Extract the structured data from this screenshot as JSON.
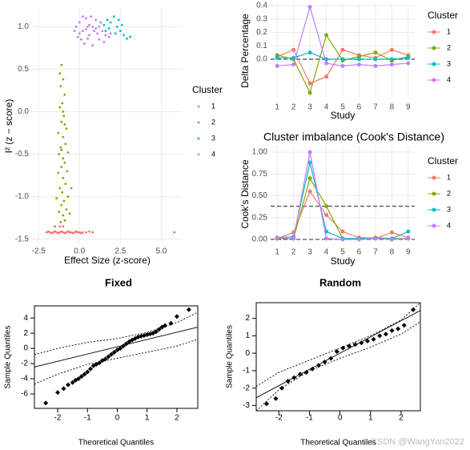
{
  "chart_data": [
    {
      "type": "scatter",
      "x_label": "Effect Size (z-score)",
      "y_label": "I² (z − score)",
      "legend_title": "Cluster",
      "xlim": [
        -2.9,
        6.3
      ],
      "ylim": [
        -1.56,
        1.22
      ],
      "xticks": [
        -2.5,
        {
          "value": 0,
          "label": "0.0"
        },
        2.5,
        {
          "value": 5,
          "label": "5.0"
        }
      ],
      "yticks": [
        {
          "value": 1,
          "label": "1.0"
        },
        0.5,
        {
          "value": 0,
          "label": "0.0"
        },
        -0.5,
        {
          "value": -1,
          "label": "-1.0"
        },
        -1.5
      ],
      "grid": true,
      "series": [
        {
          "name": "1",
          "color": "#F8766D",
          "x": [
            -2.0,
            -1.9,
            -1.8,
            -1.7,
            -1.6,
            -1.5,
            -1.4,
            -1.3,
            -1.2,
            -1.1,
            -1.0,
            -0.9,
            -0.8,
            -0.7,
            -0.6,
            -0.5,
            -0.4,
            -0.3,
            -0.2,
            -0.1,
            0.0,
            0.1,
            0.2,
            0.4,
            0.6,
            0.8,
            5.8,
            -1.2,
            -1.0
          ],
          "values": [
            -1.42,
            -1.41,
            -1.42,
            -1.43,
            -1.42,
            -1.41,
            -1.42,
            -1.43,
            -1.42,
            -1.41,
            -1.42,
            -1.43,
            -1.42,
            -1.41,
            -1.42,
            -1.42,
            -1.43,
            -1.42,
            -1.41,
            -1.42,
            -1.42,
            -1.43,
            -1.42,
            -1.42,
            -1.41,
            -1.42,
            -1.42,
            -1.35,
            -1.35
          ]
        },
        {
          "name": "2",
          "color": "#7CAE00",
          "x": [
            -1.1,
            -1.2,
            -1.0,
            -1.15,
            -0.9,
            -1.05,
            -1.2,
            -0.95,
            -1.1,
            -0.8,
            -1.3,
            -1.0,
            -0.85,
            -1.15,
            -0.7,
            -1.25,
            -1.0,
            -0.9,
            -1.1,
            -0.75,
            -1.3,
            -1.0,
            -0.85,
            -1.2,
            -1.05,
            -0.7,
            -1.4,
            -0.95,
            -1.1,
            -0.8,
            -1.25,
            -1.0,
            -0.9,
            -1.15,
            -1.5,
            -0.6,
            -0.5,
            -1.0,
            -0.9,
            -1.1
          ],
          "values": [
            0.55,
            0.45,
            0.38,
            0.3,
            0.2,
            0.1,
            0.05,
            -0.05,
            -0.12,
            -0.2,
            -0.25,
            -0.3,
            -0.38,
            -0.42,
            -0.48,
            -0.5,
            -0.55,
            -0.6,
            -0.65,
            -0.7,
            -0.72,
            -0.78,
            -0.85,
            -0.9,
            -0.95,
            -1.0,
            -1.02,
            -1.05,
            -1.1,
            -1.15,
            -1.18,
            -1.22,
            -1.28,
            -1.3,
            -1.35,
            -1.2,
            -0.9,
            0.0,
            -0.15,
            -0.45
          ]
        },
        {
          "name": "3",
          "color": "#00BFC4",
          "x": [
            1.5,
            1.7,
            1.9,
            2.1,
            2.3,
            2.5,
            2.7,
            2.9,
            3.1,
            2.2,
            1.8,
            2.4,
            2.6,
            1.6
          ],
          "values": [
            1.02,
            1.08,
            1.05,
            1.12,
            1.0,
            0.95,
            0.9,
            0.86,
            0.88,
            0.92,
            0.98,
            1.08,
            1.02,
            0.95
          ]
        },
        {
          "name": "4",
          "color": "#C77CFF",
          "x": [
            -0.2,
            0.0,
            0.2,
            0.4,
            0.6,
            0.8,
            1.0,
            1.2,
            1.4,
            1.6,
            1.8,
            0.1,
            0.3,
            0.5,
            0.7,
            0.9,
            1.1,
            1.3,
            0.0,
            -0.1,
            0.6,
            1.5,
            0.2,
            0.8,
            1.9,
            1.0,
            0.4,
            1.2,
            -0.3,
            0.5
          ],
          "values": [
            1.0,
            1.05,
            0.95,
            1.1,
            0.9,
            1.0,
            1.08,
            0.85,
            0.95,
            0.9,
            0.88,
            0.85,
            0.8,
            1.0,
            1.12,
            0.95,
            0.92,
            1.05,
            0.92,
            0.88,
            1.02,
            0.82,
            1.12,
            0.78,
            0.92,
            0.98,
            0.97,
            1.0,
            0.95,
            0.86
          ]
        }
      ]
    },
    {
      "type": "line",
      "x_label": "Study",
      "y_label": "Delta Percentage",
      "legend_title": "Cluster",
      "x": [
        1,
        2,
        3,
        4,
        5,
        6,
        7,
        8,
        9
      ],
      "xticks": [
        1,
        2,
        3,
        4,
        5,
        6,
        7,
        8,
        9
      ],
      "xlim": [
        0.6,
        9.4
      ],
      "ylim": [
        -0.287,
        0.412
      ],
      "yticks": [
        {
          "value": 0,
          "label": "0.0"
        },
        0.1,
        0.2,
        0.3,
        0.4
      ],
      "grid": true,
      "hlines": [
        0
      ],
      "series": [
        {
          "name": "1",
          "color": "#F8766D",
          "values": [
            0.02,
            0.07,
            -0.18,
            -0.13,
            0.07,
            0.03,
            0.01,
            0.07,
            0.03
          ]
        },
        {
          "name": "2",
          "color": "#7CAE00",
          "values": [
            0.03,
            0.0,
            -0.25,
            0.18,
            -0.01,
            0.02,
            0.05,
            -0.01,
            0.02
          ]
        },
        {
          "name": "3",
          "color": "#00BFC4",
          "values": [
            0.01,
            0.01,
            0.05,
            0.0,
            0.0,
            0.0,
            0.0,
            0.0,
            0.01
          ]
        },
        {
          "name": "4",
          "color": "#C77CFF",
          "values": [
            -0.05,
            -0.04,
            0.39,
            -0.03,
            -0.05,
            -0.04,
            -0.05,
            -0.04,
            -0.03
          ]
        }
      ]
    },
    {
      "type": "line",
      "title": "Cluster imbalance (Cook's Distance)",
      "x_label": "Study",
      "y_label": "Cook's Distance",
      "legend_title": "Cluster",
      "x": [
        1,
        2,
        3,
        4,
        5,
        6,
        7,
        8,
        9
      ],
      "xticks": [
        1,
        2,
        3,
        4,
        5,
        6,
        7,
        8,
        9
      ],
      "xlim": [
        0.6,
        9.4
      ],
      "ylim": [
        -0.037,
        1.073
      ],
      "yticks": [
        {
          "value": 0,
          "label": "0.00"
        },
        0.25,
        {
          "value": 0.5,
          "label": "0.50"
        },
        0.75,
        {
          "value": 1,
          "label": "1.00"
        }
      ],
      "grid": true,
      "hlines": [
        0.38,
        0
      ],
      "series": [
        {
          "name": "1",
          "color": "#F8766D",
          "values": [
            0.01,
            0.08,
            0.55,
            0.28,
            0.09,
            0.02,
            0.01,
            0.08,
            0.02
          ]
        },
        {
          "name": "2",
          "color": "#7CAE00",
          "values": [
            0.01,
            0.01,
            0.7,
            0.38,
            0.01,
            0.01,
            0.02,
            0.01,
            0.01
          ]
        },
        {
          "name": "3",
          "color": "#00BFC4",
          "values": [
            0.02,
            0.03,
            0.88,
            0.09,
            0.01,
            0.01,
            0.01,
            0.01,
            0.09
          ]
        },
        {
          "name": "4",
          "color": "#C77CFF",
          "values": [
            0.02,
            0.01,
            1.0,
            0.01,
            0.0,
            0.0,
            0.01,
            0.0,
            0.01
          ]
        }
      ]
    },
    {
      "type": "qq",
      "title": "Fixed",
      "x_label": "Theoretical Quantiles",
      "y_label": "Sample Quantiles",
      "xlim": [
        -2.78,
        2.7
      ],
      "ylim": [
        -7.9,
        5.6
      ],
      "xticks": [
        -2,
        -1,
        0,
        1,
        2
      ],
      "yticks": [
        -6,
        -4,
        -2,
        0,
        2,
        4
      ],
      "points": {
        "color": "#000000",
        "x": [
          -2.4,
          -2.0,
          -1.8,
          -1.65,
          -1.5,
          -1.4,
          -1.3,
          -1.2,
          -1.1,
          -1.0,
          -0.9,
          -0.8,
          -0.7,
          -0.6,
          -0.5,
          -0.4,
          -0.3,
          -0.2,
          -0.1,
          0.0,
          0.1,
          0.2,
          0.3,
          0.4,
          0.5,
          0.6,
          0.7,
          0.8,
          0.9,
          1.0,
          1.1,
          1.2,
          1.3,
          1.4,
          1.5,
          1.6,
          1.8,
          2.0,
          2.4
        ],
        "values": [
          -7.2,
          -5.8,
          -5.3,
          -4.8,
          -4.5,
          -4.2,
          -4.0,
          -3.7,
          -3.4,
          -3.1,
          -2.7,
          -2.3,
          -2.1,
          -1.9,
          -1.6,
          -1.4,
          -1.1,
          -0.8,
          -0.5,
          -0.2,
          0.0,
          0.3,
          0.6,
          0.9,
          1.1,
          1.3,
          1.5,
          1.6,
          1.7,
          1.8,
          1.9,
          2.0,
          2.2,
          2.5,
          2.8,
          3.0,
          3.3,
          4.2,
          5.1
        ]
      },
      "line": {
        "x": [
          -2.78,
          2.7
        ],
        "values": [
          -2.45,
          2.8
        ]
      },
      "band": {
        "x": [
          -2.78,
          -2,
          -1,
          0,
          1,
          2,
          2.7
        ],
        "upper": [
          -0.84,
          0.0,
          0.8,
          1.3,
          2.1,
          3.4,
          4.75
        ],
        "lower": [
          -4.7,
          -3.4,
          -2.1,
          -1.3,
          -0.5,
          0.3,
          1.2
        ]
      }
    },
    {
      "type": "qq",
      "title": "Random",
      "x_label": "Theoretical Quantiles",
      "y_label": "Sample Quantiles",
      "xlim": [
        -2.74,
        2.63
      ],
      "ylim": [
        -3.3,
        2.9
      ],
      "xticks": [
        -2,
        -1,
        0,
        1,
        2
      ],
      "yticks": [
        -3,
        -2,
        -1,
        0,
        1,
        2
      ],
      "points": {
        "color": "#000000",
        "x": [
          -2.4,
          -2.1,
          -1.9,
          -1.7,
          -1.5,
          -1.3,
          -1.1,
          -0.9,
          -0.7,
          -0.5,
          -0.3,
          -0.1,
          0.1,
          0.3,
          0.5,
          0.7,
          0.9,
          1.1,
          1.3,
          1.5,
          1.7,
          1.9,
          2.1,
          2.4
        ],
        "values": [
          -2.9,
          -2.6,
          -2.0,
          -1.6,
          -1.4,
          -1.2,
          -1.1,
          -0.9,
          -0.7,
          -0.5,
          -0.3,
          0.1,
          0.3,
          0.4,
          0.5,
          0.6,
          0.7,
          0.8,
          1.0,
          1.1,
          1.3,
          1.4,
          1.6,
          2.5
        ]
      },
      "line": {
        "x": [
          -2.74,
          2.63
        ],
        "values": [
          -2.55,
          2.45
        ]
      },
      "band": {
        "x": [
          -2.74,
          -2,
          -1,
          0,
          1,
          2,
          2.63
        ],
        "upper": [
          -1.9,
          -1.1,
          -0.4,
          0.3,
          1.0,
          1.9,
          2.9
        ],
        "lower": [
          -3.3,
          -2.1,
          -1.0,
          -0.3,
          0.35,
          1.1,
          1.8
        ]
      }
    }
  ],
  "watermark": "CSDN @WangYan2022"
}
